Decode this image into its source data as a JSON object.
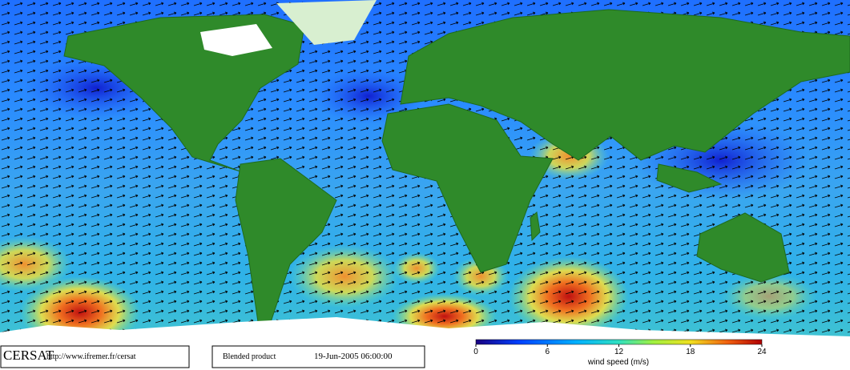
{
  "footer": {
    "brand": "CERSAT",
    "url": "http://www.ifremer.fr/cersat",
    "product": "Blended product",
    "date": "19-Jun-2005 06:00:00"
  },
  "colorbar": {
    "label": "wind speed (m/s)",
    "lim": [
      0,
      24
    ],
    "ticks": [
      0,
      6,
      12,
      18,
      24
    ]
  }
}
